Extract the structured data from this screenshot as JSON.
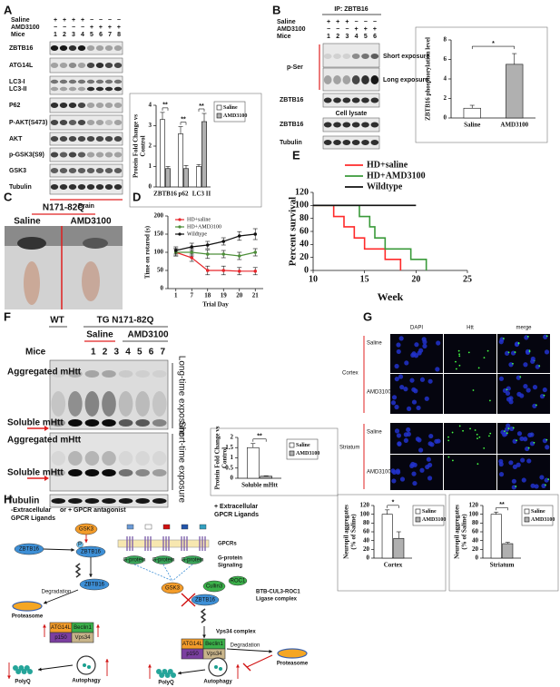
{
  "figure": {
    "A": {
      "label": "A",
      "conditions": [
        "Saline",
        "AMD3100",
        "Mice"
      ],
      "signs": [
        "+ + + + − − − −",
        "− − − − + + + +",
        "1 2 3 4 5 6 7 8"
      ],
      "blots": [
        "ZBTB16",
        "ATG14L",
        "LC3-I",
        "LC3-II",
        "P62",
        "P-AKT(S473)",
        "AKT",
        "p-GSK3(S9)",
        "GSK3",
        "Tubulin"
      ],
      "tissue": "Brain"
    },
    "B": {
      "label": "B",
      "ip": "IP: ZBTB16",
      "conditions": [
        "Saline",
        "AMD3100",
        "Mice"
      ],
      "signs": [
        "+ + + − − −",
        "− − − + + +",
        "1 2 3 4 5 6"
      ],
      "blots": [
        "p-Ser",
        "ZBTB16",
        "ZBTB16",
        "Tubulin"
      ],
      "exposures": [
        "Short exposure",
        "Long exposure"
      ],
      "lysate": "Cell lysate"
    },
    "C": {
      "label": "C",
      "model": "N171-82Q",
      "groups": [
        "Saline",
        "AMD3100"
      ]
    },
    "D": {
      "label": "D"
    },
    "E": {
      "label": "E"
    },
    "F": {
      "label": "F",
      "wt": "WT",
      "tg": "TG  N171-82Q",
      "groups": [
        "Saline",
        "AMD3100"
      ],
      "mice_label": "Mice",
      "mice": "1 2 3 4 5 6 7",
      "bands": [
        "Aggregated mHtt",
        "Soluble mHtt",
        "Aggregated mHtt",
        "Soluble mHtt",
        "Tubulin"
      ],
      "exposures": [
        "Long-time exposure",
        "Short-time exposure"
      ]
    },
    "G": {
      "label": "G",
      "channels": [
        "DAPI",
        "Htt",
        "merge"
      ],
      "rows": [
        "Saline",
        "AMD3100",
        "Saline",
        "AMD3100"
      ],
      "regions": [
        "Cortex",
        "Striatum"
      ]
    },
    "H": {
      "label": "H",
      "left": [
        "-Extracellular",
        "or + GPCR antagonist",
        "GPCR Ligands"
      ],
      "right": [
        "+ Extracellular",
        "GPCR Ligands"
      ],
      "gsk3": "GSK3",
      "zbtb16": "ZBTB16",
      "phospho": "P",
      "degradation": "Degradation",
      "proteasome": "Proteasome",
      "atg14l": "ATG14L",
      "beclin1": "Beclin1",
      "p150": "p150",
      "vps34": "Vps34",
      "autophagy": "Autophagy",
      "polyq": "PolyQ",
      "gpcrs": "GPCRs",
      "gprotein_signaling": [
        "G-protein",
        "Signaling"
      ],
      "gprotein": "G-protein",
      "cullin3": "Cullin3",
      "roc1": "ROC1",
      "ligase": [
        "BTB-CUL3-ROC1",
        "Ligase complex"
      ],
      "vps34_complex": "Vps34 complex"
    }
  },
  "chart_data": [
    {
      "type": "bar",
      "categories": [
        "ZBTB16",
        "p62",
        "LC3 II"
      ],
      "ylabel": [
        "Protein Fold Change vs",
        "Control"
      ],
      "ylim": [
        0,
        4
      ],
      "yticks": [
        0,
        1,
        2,
        3,
        4
      ],
      "significance": [
        "**",
        "**",
        "**"
      ],
      "series": [
        {
          "name": "Saline",
          "color": "#ffffff",
          "values": [
            3.3,
            2.6,
            1.0
          ],
          "errors": [
            0.35,
            0.35,
            0.1
          ]
        },
        {
          "name": "AMD3100",
          "color": "#b0b0b0",
          "values": [
            0.9,
            0.9,
            3.2
          ],
          "errors": [
            0.1,
            0.15,
            0.4
          ]
        }
      ]
    },
    {
      "type": "bar",
      "categories": [
        "Saline",
        "AMD3100"
      ],
      "values": [
        1.0,
        5.5
      ],
      "errors": [
        0.3,
        1.1
      ],
      "colors": [
        "#ffffff",
        "#b0b0b0"
      ],
      "ylabel": "ZBTB16 phosphorylation level",
      "ylim": [
        0,
        8
      ],
      "yticks": [
        0,
        2,
        4,
        6,
        8
      ],
      "significance": "*"
    },
    {
      "type": "line",
      "categories": [
        "1",
        "7",
        "18",
        "19",
        "20",
        "21"
      ],
      "ylabel": "Time on rotarod (s)",
      "xlabel": "Trial Day",
      "ylim": [
        0,
        200
      ],
      "yticks": [
        0,
        50,
        100,
        150,
        200
      ],
      "series": [
        {
          "name": "HD+saline",
          "color": "#e8262b",
          "values": [
            100,
            85,
            50,
            50,
            48,
            48
          ],
          "errors": [
            10,
            10,
            12,
            12,
            10,
            10
          ]
        },
        {
          "name": "HD+AMD3100",
          "color": "#4e8f3a",
          "values": [
            100,
            100,
            95,
            95,
            90,
            100
          ],
          "errors": [
            10,
            10,
            12,
            10,
            10,
            10
          ]
        },
        {
          "name": "Wildtype",
          "color": "#111111",
          "values": [
            105,
            115,
            120,
            130,
            145,
            150
          ],
          "errors": [
            10,
            10,
            10,
            10,
            12,
            15
          ]
        }
      ]
    },
    {
      "type": "step",
      "ylabel": "Percent survival",
      "xlabel": "Week",
      "xlim": [
        10,
        25
      ],
      "xticks": [
        10,
        15,
        20,
        25
      ],
      "ylim": [
        0,
        120
      ],
      "yticks": [
        0,
        20,
        40,
        60,
        80,
        100,
        120
      ],
      "series": [
        {
          "name": "HD+saline",
          "color": "#ff2a2a",
          "x": [
            10,
            12,
            13,
            14,
            15,
            17,
            18.5
          ],
          "values": [
            100,
            83,
            67,
            50,
            33,
            17,
            0
          ]
        },
        {
          "name": "HD+AMD3100",
          "color": "#3a9a3a",
          "x": [
            10,
            14.5,
            15.5,
            16,
            17,
            19.5,
            21
          ],
          "values": [
            100,
            83,
            67,
            50,
            33,
            17,
            0
          ]
        },
        {
          "name": "Wildtype",
          "color": "#111111",
          "x": [
            10,
            20
          ],
          "values": [
            100,
            100
          ]
        }
      ]
    },
    {
      "type": "bar",
      "categories": [
        "Soluble mHtt"
      ],
      "ylabel": [
        "Protein Fold Change vs",
        "Control"
      ],
      "ylim": [
        0,
        2
      ],
      "yticks": [
        0,
        0.5,
        1,
        1.5,
        2
      ],
      "significance": [
        "**"
      ],
      "series": [
        {
          "name": "Saline",
          "color": "#ffffff",
          "values": [
            1.5
          ],
          "errors": [
            0.2
          ]
        },
        {
          "name": "AMD3100",
          "color": "#b0b0b0",
          "values": [
            0.1
          ],
          "errors": [
            0.02
          ]
        }
      ]
    },
    {
      "type": "bar",
      "categories": [
        "Cortex"
      ],
      "ylabel": [
        "Neuropil aggregates",
        "(% of Saline)"
      ],
      "ylim": [
        0,
        120
      ],
      "yticks": [
        0,
        20,
        40,
        60,
        80,
        100,
        120
      ],
      "significance": [
        "*"
      ],
      "series": [
        {
          "name": "Saline",
          "color": "#ffffff",
          "values": [
            100
          ],
          "errors": [
            10
          ]
        },
        {
          "name": "AMD3100",
          "color": "#b0b0b0",
          "values": [
            45
          ],
          "errors": [
            15
          ]
        }
      ]
    },
    {
      "type": "bar",
      "categories": [
        "Striatum"
      ],
      "ylabel": [
        "Neuropil aggregates",
        "(% of Saline)"
      ],
      "ylim": [
        0,
        120
      ],
      "yticks": [
        0,
        20,
        40,
        60,
        80,
        100,
        120
      ],
      "significance": [
        "**"
      ],
      "series": [
        {
          "name": "Saline",
          "color": "#ffffff",
          "values": [
            100
          ],
          "errors": [
            5
          ]
        },
        {
          "name": "AMD3100",
          "color": "#b0b0b0",
          "values": [
            33
          ],
          "errors": [
            3
          ]
        }
      ]
    }
  ]
}
